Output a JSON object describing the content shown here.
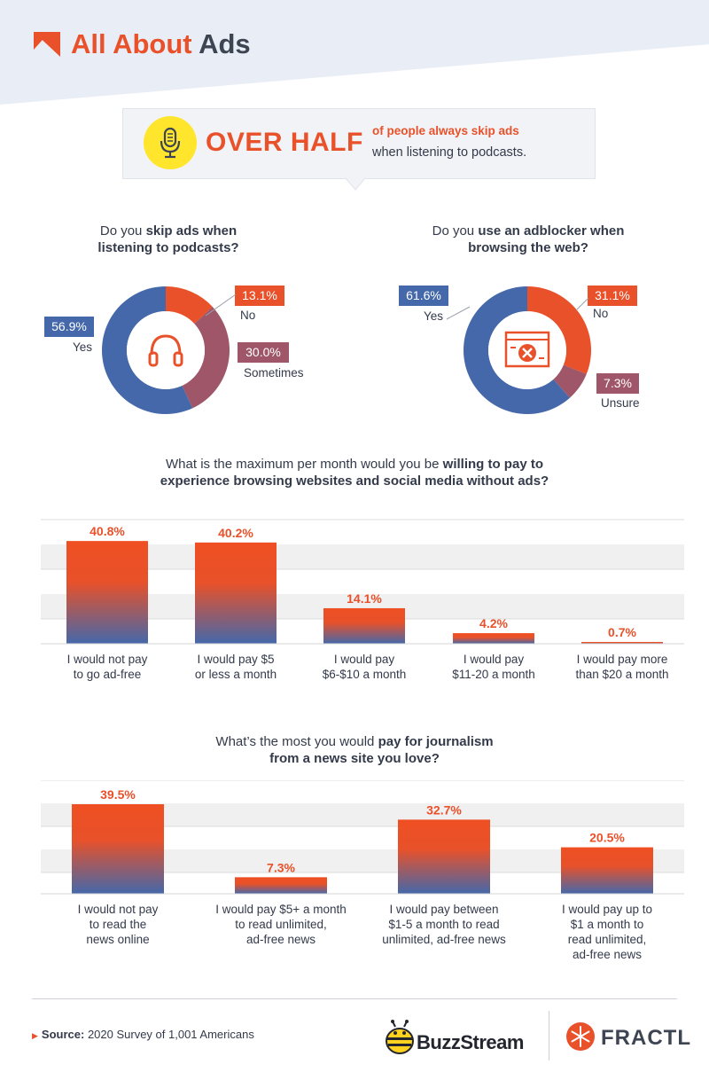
{
  "header": {
    "title_part1": "All About",
    "title_part2": "Ads"
  },
  "callout": {
    "headline": "OVER HALF",
    "line1": "of people always skip ads",
    "line2": "when listening to podcasts."
  },
  "donut1": {
    "question_pre": "Do you ",
    "question_bold": "skip ads when",
    "question_line2": "listening to podcasts?"
  },
  "donut2": {
    "question_pre": "Do you ",
    "question_bold": "use an adblocker when",
    "question_line2": "browsing the web?"
  },
  "bars1": {
    "question_line1_pre": "What is the maximum per month would you be ",
    "question_line1_bold": "willing to pay to",
    "question_line2": "experience browsing websites and social media without ads?"
  },
  "bars2": {
    "question_line1_pre": "What’s the most you would ",
    "question_line1_bold": "pay for journalism",
    "question_line2": "from a news site you love?"
  },
  "footer": {
    "source_label": "Source:",
    "source_text": " 2020 Survey of 1,001 Americans",
    "brand1": "BuzzStream",
    "brand2": "FRACTL"
  },
  "colors": {
    "red": "#e8512a",
    "blue": "#4468aa",
    "mauve": "#9e5668",
    "yellow": "#ffe52c"
  },
  "chart_data": [
    {
      "type": "pie",
      "title": "Do you skip ads when listening to podcasts?",
      "slices": [
        {
          "label": "No",
          "value": 13.1,
          "display": "13.1%",
          "color": "#e8512a"
        },
        {
          "label": "Sometimes",
          "value": 30.0,
          "display": "30.0%",
          "color": "#9e5668"
        },
        {
          "label": "Yes",
          "value": 56.9,
          "display": "56.9%",
          "color": "#4468aa"
        }
      ]
    },
    {
      "type": "pie",
      "title": "Do you use an adblocker when browsing the web?",
      "slices": [
        {
          "label": "No",
          "value": 31.1,
          "display": "31.1%",
          "color": "#e8512a"
        },
        {
          "label": "Unsure",
          "value": 7.3,
          "display": "7.3%",
          "color": "#9e5668"
        },
        {
          "label": "Yes",
          "value": 61.6,
          "display": "61.6%",
          "color": "#4468aa"
        }
      ]
    },
    {
      "type": "bar",
      "title": "What is the maximum per month would you be willing to pay to experience browsing websites and social media without ads?",
      "ylim": [
        0,
        50
      ],
      "categories": [
        [
          "I would not pay",
          "to go ad-free"
        ],
        [
          "I would pay $5",
          "or less a month"
        ],
        [
          "I would pay",
          "$6-$10 a month"
        ],
        [
          "I would pay",
          "$11-20 a month"
        ],
        [
          "I would pay more",
          "than $20 a month"
        ]
      ],
      "values": [
        40.8,
        40.2,
        14.1,
        4.2,
        0.7
      ],
      "labels": [
        "40.8%",
        "40.2%",
        "14.1%",
        "4.2%",
        "0.7%"
      ]
    },
    {
      "type": "bar",
      "title": "What’s the most you would pay for journalism from a news site you love?",
      "ylim": [
        0,
        40
      ],
      "categories": [
        [
          "I would not pay",
          "to read the",
          "news online"
        ],
        [
          "I would pay $5+ a month",
          "to read unlimited,",
          "ad-free news"
        ],
        [
          "I would pay between",
          "$1-5 a month to read",
          "unlimited, ad-free news"
        ],
        [
          "I would pay up to",
          "$1 a month to",
          "read unlimited,",
          "ad-free news"
        ]
      ],
      "values": [
        39.5,
        7.3,
        32.7,
        20.5
      ],
      "labels": [
        "39.5%",
        "7.3%",
        "32.7%",
        "20.5%"
      ]
    }
  ]
}
